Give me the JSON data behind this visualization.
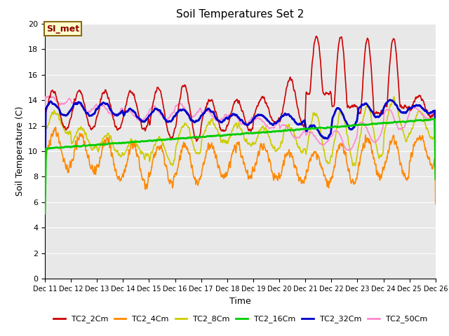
{
  "title": "Soil Temperatures Set 2",
  "xlabel": "Time",
  "ylabel": "Soil Temperature (C)",
  "ylim": [
    0,
    20
  ],
  "yticks": [
    0,
    2,
    4,
    6,
    8,
    10,
    12,
    14,
    16,
    18,
    20
  ],
  "xlim_days": [
    11,
    26
  ],
  "xtick_day_positions": [
    11,
    12,
    13,
    14,
    15,
    16,
    17,
    18,
    19,
    20,
    21,
    22,
    23,
    24,
    25,
    26
  ],
  "xtick_labels": [
    "Dec 11",
    "Dec 12",
    "Dec 13",
    "Dec 14",
    "Dec 15",
    "Dec 16",
    "Dec 17",
    "Dec 18",
    "Dec 19",
    "Dec 20",
    "Dec 21",
    "Dec 22",
    "Dec 23",
    "Dec 24",
    "Dec 25",
    "Dec 26"
  ],
  "annotation_text": "SI_met",
  "bg_color": "#e8e8e8",
  "series_colors": {
    "TC2_2Cm": "#cc0000",
    "TC2_4Cm": "#ff8800",
    "TC2_8Cm": "#cccc00",
    "TC2_16Cm": "#00cc00",
    "TC2_32Cm": "#0000cc",
    "TC2_50Cm": "#ff88cc"
  },
  "line_widths": {
    "TC2_2Cm": 1.2,
    "TC2_4Cm": 1.2,
    "TC2_8Cm": 1.2,
    "TC2_16Cm": 2.0,
    "TC2_32Cm": 2.0,
    "TC2_50Cm": 1.2
  }
}
